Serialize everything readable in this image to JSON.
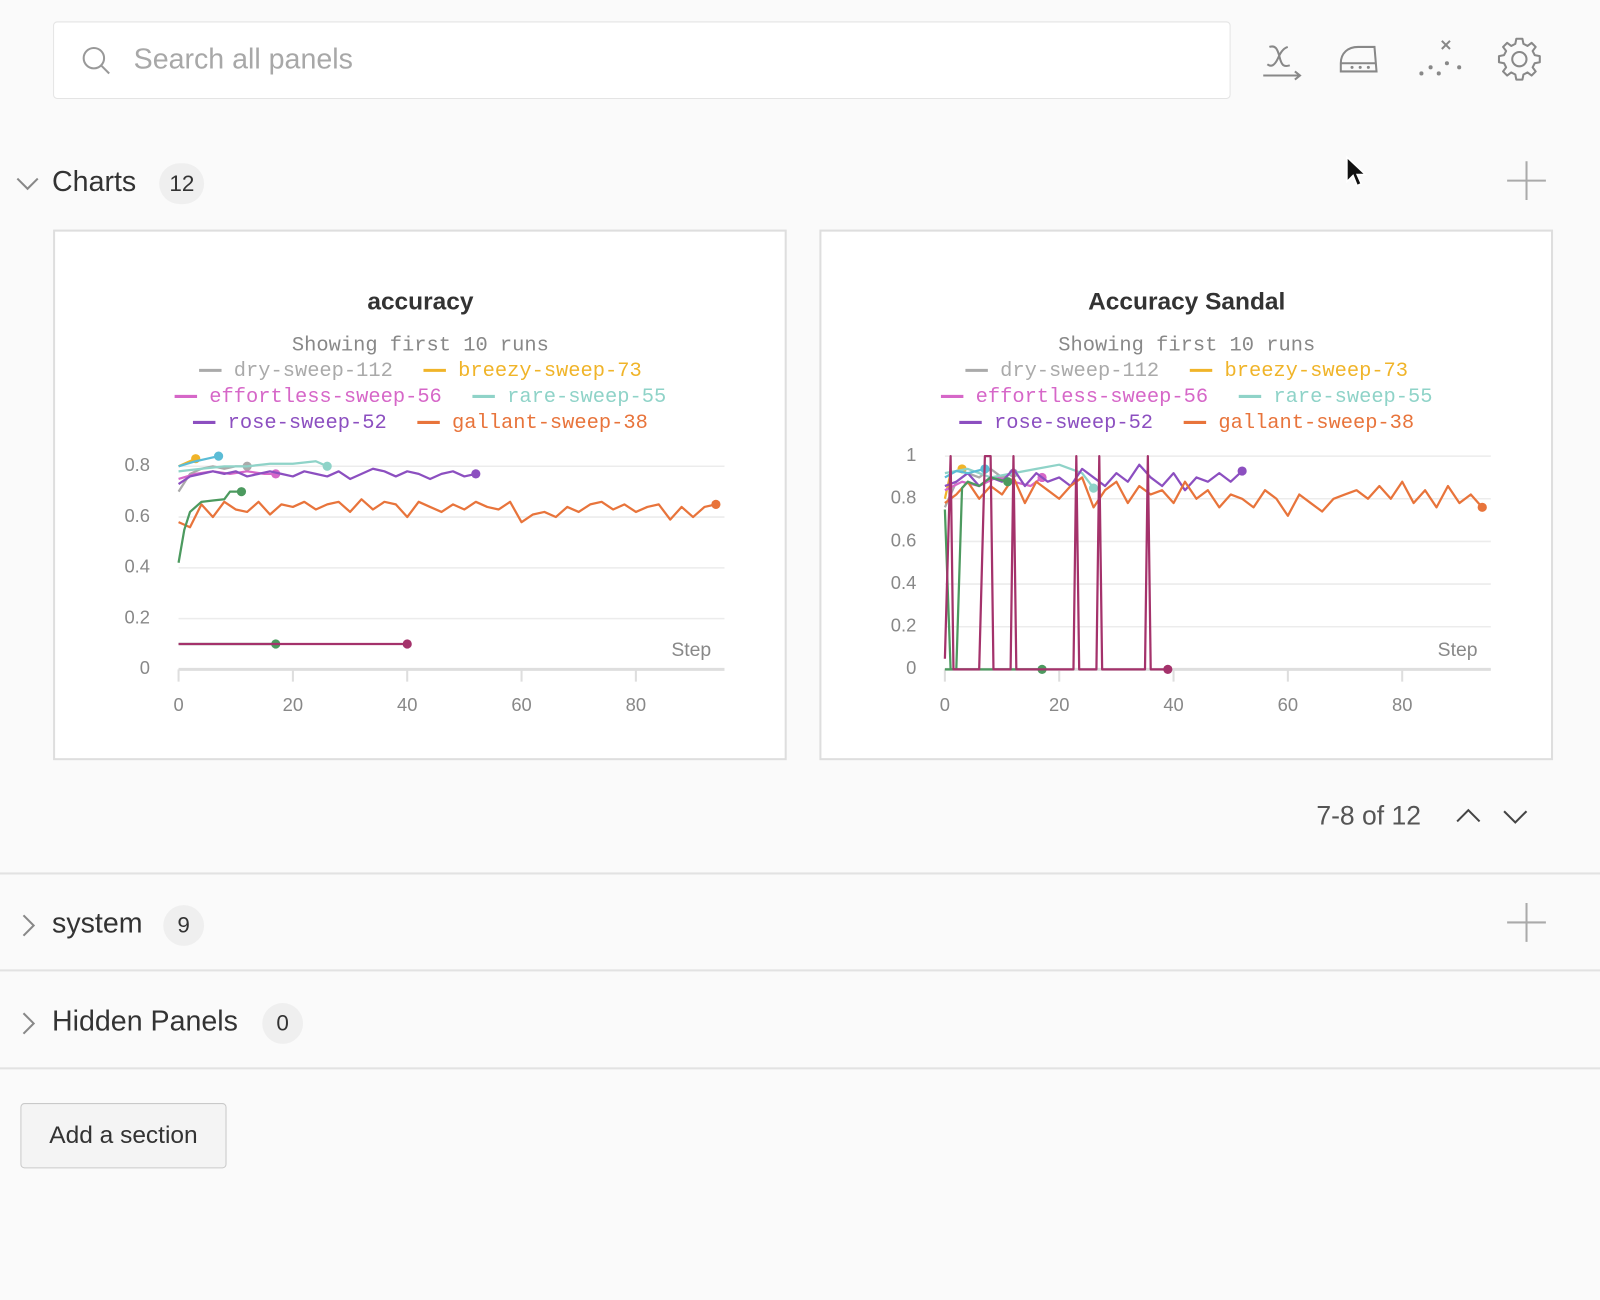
{
  "search": {
    "placeholder": "Search all panels"
  },
  "sections": [
    {
      "name": "Charts",
      "count": 12
    },
    {
      "name": "system",
      "count": 9
    },
    {
      "name": "Hidden Panels",
      "count": 0
    }
  ],
  "pagination": {
    "label": "7-8 of 12"
  },
  "button": {
    "label": "Add a section"
  },
  "chart_data": [
    {
      "type": "line",
      "title": "accuracy",
      "subtitle": "Showing first 10 runs",
      "xlabel": "Step",
      "xlim": [
        0,
        95.5
      ],
      "ylim": [
        0,
        0.84
      ],
      "xticks": [
        0,
        20,
        40,
        60,
        80
      ],
      "yticks": [
        0,
        0.2,
        0.4,
        0.6,
        0.8
      ],
      "grid": true,
      "series": [
        {
          "name": "dry-sweep-112",
          "color": "#aaaaaa",
          "x": [
            0,
            2,
            4,
            6,
            8,
            10,
            12
          ],
          "values": [
            0.7,
            0.77,
            0.79,
            0.8,
            0.79,
            0.8,
            0.8
          ]
        },
        {
          "name": "breezy-sweep-73",
          "color": "#f0b429",
          "x": [
            0,
            3
          ],
          "values": [
            0.8,
            0.83
          ]
        },
        {
          "name": "effortless-sweep-56",
          "color": "#d667c8",
          "x": [
            0,
            3,
            6,
            9,
            12,
            15,
            17
          ],
          "values": [
            0.75,
            0.77,
            0.78,
            0.77,
            0.78,
            0.77,
            0.77
          ]
        },
        {
          "name": "rare-sweep-55",
          "color": "#8fd3c8",
          "x": [
            0,
            4,
            8,
            12,
            16,
            20,
            24,
            26
          ],
          "values": [
            0.78,
            0.79,
            0.8,
            0.8,
            0.81,
            0.81,
            0.82,
            0.8
          ]
        },
        {
          "name": "rose-sweep-52",
          "color": "#8c4fc0",
          "x": [
            0,
            2,
            4,
            6,
            8,
            10,
            12,
            14,
            16,
            18,
            20,
            22,
            24,
            26,
            28,
            30,
            32,
            34,
            36,
            38,
            40,
            42,
            44,
            46,
            48,
            50,
            52
          ],
          "values": [
            0.73,
            0.76,
            0.77,
            0.78,
            0.77,
            0.78,
            0.76,
            0.77,
            0.78,
            0.77,
            0.76,
            0.78,
            0.77,
            0.76,
            0.78,
            0.75,
            0.77,
            0.79,
            0.78,
            0.76,
            0.78,
            0.77,
            0.75,
            0.77,
            0.78,
            0.76,
            0.77
          ]
        },
        {
          "name": "gallant-sweep-38",
          "color": "#e8743b",
          "x": [
            0,
            2,
            4,
            6,
            8,
            10,
            12,
            14,
            16,
            18,
            20,
            22,
            24,
            26,
            28,
            30,
            32,
            34,
            36,
            38,
            40,
            42,
            44,
            46,
            48,
            50,
            52,
            54,
            56,
            58,
            60,
            62,
            64,
            66,
            68,
            70,
            72,
            74,
            76,
            78,
            80,
            82,
            84,
            86,
            88,
            90,
            92,
            94
          ],
          "values": [
            0.58,
            0.56,
            0.65,
            0.6,
            0.66,
            0.63,
            0.62,
            0.66,
            0.61,
            0.65,
            0.64,
            0.66,
            0.63,
            0.65,
            0.66,
            0.62,
            0.67,
            0.63,
            0.66,
            0.65,
            0.6,
            0.66,
            0.64,
            0.62,
            0.65,
            0.63,
            0.66,
            0.64,
            0.63,
            0.66,
            0.58,
            0.61,
            0.62,
            0.6,
            0.64,
            0.62,
            0.65,
            0.66,
            0.63,
            0.65,
            0.62,
            0.64,
            0.65,
            0.59,
            0.64,
            0.6,
            0.64,
            0.65
          ]
        },
        {
          "color": "#5bbcd6",
          "x": [
            0,
            3,
            5,
            7
          ],
          "values": [
            0.8,
            0.82,
            0.83,
            0.84
          ]
        },
        {
          "color": "#4c9a5f",
          "x": [
            0,
            1,
            2,
            4,
            6,
            8,
            9,
            11
          ],
          "values": [
            0.42,
            0.55,
            0.62,
            0.66,
            0.665,
            0.67,
            0.7,
            0.7
          ]
        },
        {
          "color": "#4c9a5f",
          "x": [
            0,
            17
          ],
          "values": [
            0.1,
            0.1
          ]
        },
        {
          "color": "#a4326b",
          "x": [
            0,
            40
          ],
          "values": [
            0.1,
            0.1
          ]
        }
      ]
    },
    {
      "type": "line",
      "title": "Accuracy Sandal",
      "subtitle": "Showing first 10 runs",
      "xlabel": "Step",
      "xlim": [
        0,
        95.5
      ],
      "ylim": [
        0,
        1
      ],
      "xticks": [
        0,
        20,
        40,
        60,
        80
      ],
      "yticks": [
        0,
        0.2,
        0.4,
        0.6,
        0.8,
        1
      ],
      "grid": true,
      "series": [
        {
          "name": "dry-sweep-112",
          "color": "#aaaaaa",
          "x": [
            0,
            2,
            4,
            6,
            8,
            10,
            12
          ],
          "values": [
            0.76,
            0.88,
            0.92,
            0.9,
            0.94,
            0.9,
            0.92
          ]
        },
        {
          "name": "breezy-sweep-73",
          "color": "#f0b429",
          "x": [
            0,
            1,
            3
          ],
          "values": [
            0.8,
            0.92,
            0.94
          ]
        },
        {
          "name": "effortless-sweep-56",
          "color": "#d667c8",
          "x": [
            0,
            3,
            6,
            9,
            12,
            15,
            17
          ],
          "values": [
            0.84,
            0.88,
            0.86,
            0.9,
            0.88,
            0.86,
            0.9
          ]
        },
        {
          "name": "rare-sweep-55",
          "color": "#8fd3c8",
          "x": [
            0,
            4,
            8,
            12,
            16,
            20,
            24,
            26
          ],
          "values": [
            0.92,
            0.94,
            0.9,
            0.92,
            0.94,
            0.96,
            0.92,
            0.85
          ]
        },
        {
          "name": "rose-sweep-52",
          "color": "#8c4fc0",
          "x": [
            0,
            2,
            4,
            6,
            8,
            10,
            12,
            14,
            16,
            18,
            20,
            22,
            24,
            26,
            28,
            30,
            32,
            34,
            36,
            38,
            40,
            42,
            44,
            46,
            48,
            50,
            52
          ],
          "values": [
            0.86,
            0.88,
            0.92,
            0.86,
            0.9,
            0.88,
            0.94,
            0.86,
            0.92,
            0.88,
            0.9,
            0.86,
            0.94,
            0.9,
            0.86,
            0.92,
            0.88,
            0.96,
            0.9,
            0.86,
            0.92,
            0.84,
            0.9,
            0.88,
            0.92,
            0.88,
            0.93
          ]
        },
        {
          "name": "gallant-sweep-38",
          "color": "#e8743b",
          "x": [
            0,
            2,
            4,
            6,
            8,
            10,
            12,
            14,
            16,
            18,
            20,
            22,
            24,
            26,
            28,
            30,
            32,
            34,
            36,
            38,
            40,
            42,
            44,
            46,
            48,
            50,
            52,
            54,
            56,
            58,
            60,
            62,
            64,
            66,
            68,
            70,
            72,
            74,
            76,
            78,
            80,
            82,
            84,
            86,
            88,
            90,
            92,
            94
          ],
          "values": [
            0.78,
            0.82,
            0.88,
            0.8,
            0.86,
            0.82,
            0.9,
            0.78,
            0.88,
            0.84,
            0.8,
            0.86,
            0.9,
            0.76,
            0.84,
            0.88,
            0.78,
            0.86,
            0.82,
            0.84,
            0.78,
            0.88,
            0.8,
            0.84,
            0.76,
            0.82,
            0.8,
            0.76,
            0.84,
            0.8,
            0.72,
            0.82,
            0.78,
            0.74,
            0.8,
            0.82,
            0.84,
            0.8,
            0.86,
            0.8,
            0.88,
            0.78,
            0.84,
            0.76,
            0.86,
            0.78,
            0.82,
            0.76
          ]
        },
        {
          "color": "#5bbcd6",
          "x": [
            0,
            2,
            4,
            7
          ],
          "values": [
            0.9,
            0.93,
            0.92,
            0.94
          ]
        },
        {
          "color": "#4c9a5f",
          "x": [
            0,
            1,
            2,
            3,
            4,
            6,
            8,
            11
          ],
          "values": [
            0.75,
            0,
            0,
            0.85,
            0.88,
            0.86,
            0.9,
            0.88
          ]
        },
        {
          "color": "#4c9a5f",
          "x": [
            0,
            17
          ],
          "values": [
            0,
            0
          ]
        },
        {
          "color": "#a4326b",
          "x": [
            0,
            1,
            1.5,
            6,
            7,
            8,
            8.5,
            11.5,
            12,
            12.5,
            22.5,
            23,
            23.5,
            26.5,
            27,
            27.5,
            35,
            35.5,
            36,
            39
          ],
          "values": [
            0.05,
            1,
            0,
            0,
            1,
            1,
            0,
            0,
            1,
            0,
            0,
            1,
            0,
            0,
            1,
            0,
            0,
            1,
            0,
            0
          ]
        }
      ]
    }
  ]
}
